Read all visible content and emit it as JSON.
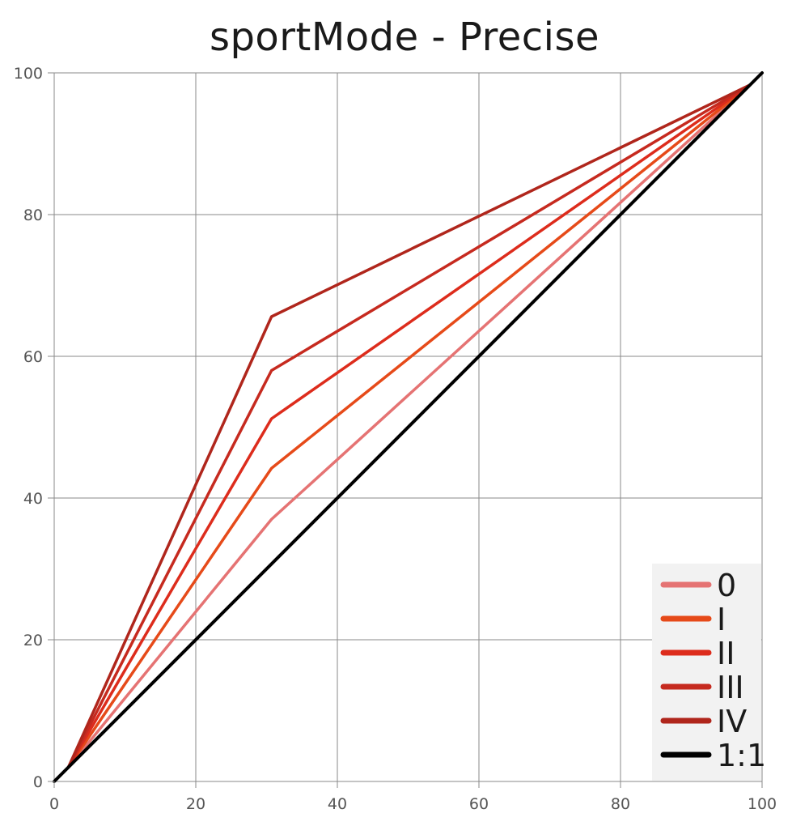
{
  "chart_data": {
    "type": "line",
    "title": "sportMode - Precise",
    "xlabel": "",
    "ylabel": "",
    "xlim": [
      0,
      100
    ],
    "ylim": [
      0,
      100
    ],
    "x_ticks": [
      "0",
      "20",
      "40",
      "60",
      "80",
      "100"
    ],
    "y_ticks": [
      "0",
      "20",
      "40",
      "60",
      "80",
      "100"
    ],
    "grid": true,
    "legend_position": "bottom-right",
    "series": [
      {
        "name": "0",
        "color": "#e57373",
        "x": [
          2,
          30.7,
          98.3
        ],
        "y": [
          2,
          37,
          98.3
        ]
      },
      {
        "name": "I",
        "color": "#e64a19",
        "x": [
          2,
          30.7,
          98.3
        ],
        "y": [
          2,
          44.2,
          98.3
        ]
      },
      {
        "name": "II",
        "color": "#dd2c1c",
        "x": [
          2,
          30.7,
          98.3
        ],
        "y": [
          2,
          51.2,
          98.3
        ]
      },
      {
        "name": "III",
        "color": "#c62a1f",
        "x": [
          2,
          30.7,
          98.3
        ],
        "y": [
          2,
          58,
          98.3
        ]
      },
      {
        "name": "IV",
        "color": "#b0261c",
        "x": [
          2,
          30.7,
          98.3
        ],
        "y": [
          2,
          65.6,
          98.3
        ]
      },
      {
        "name": "1:1",
        "color": "#000000",
        "x": [
          0,
          100
        ],
        "y": [
          0,
          100
        ]
      }
    ]
  }
}
